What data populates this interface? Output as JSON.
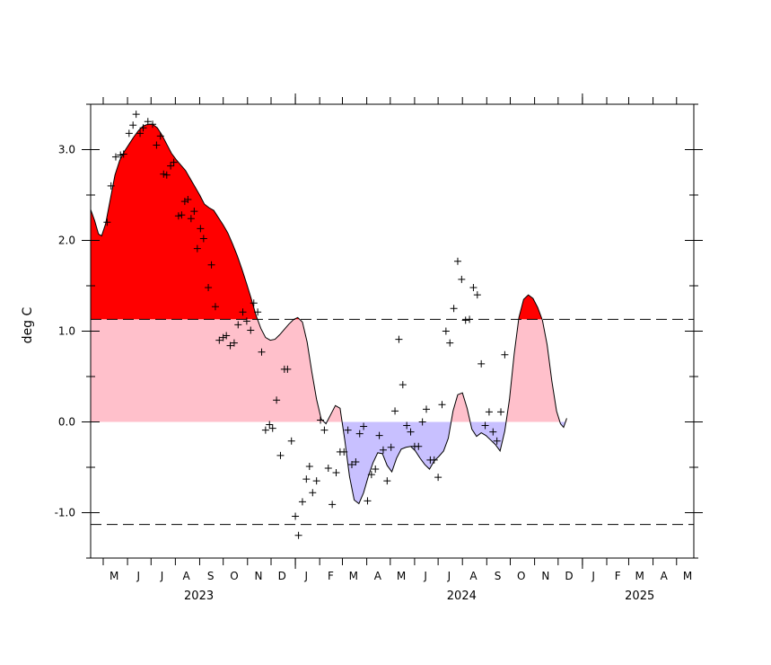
{
  "chart_data": {
    "type": "area",
    "ylabel": "deg C",
    "ylim": [
      -1.5,
      3.5
    ],
    "yticks": [
      {
        "value": -1.0,
        "label": "-1.0"
      },
      {
        "value": 0.0,
        "label": "0.0"
      },
      {
        "value": 1.0,
        "label": "1.0"
      },
      {
        "value": 2.0,
        "label": "2.0"
      },
      {
        "value": 3.0,
        "label": "3.0"
      }
    ],
    "x_start": "2023-04-15",
    "x_end": "2025-05-23",
    "month_ticks": [
      {
        "date": "2023-05-15",
        "label": "M"
      },
      {
        "date": "2023-06-15",
        "label": "J"
      },
      {
        "date": "2023-07-15",
        "label": "J"
      },
      {
        "date": "2023-08-15",
        "label": "A"
      },
      {
        "date": "2023-09-15",
        "label": "S"
      },
      {
        "date": "2023-10-15",
        "label": "O"
      },
      {
        "date": "2023-11-15",
        "label": "N"
      },
      {
        "date": "2023-12-15",
        "label": "D"
      },
      {
        "date": "2024-01-15",
        "label": "J"
      },
      {
        "date": "2024-02-15",
        "label": "F"
      },
      {
        "date": "2024-03-15",
        "label": "M"
      },
      {
        "date": "2024-04-15",
        "label": "A"
      },
      {
        "date": "2024-05-15",
        "label": "M"
      },
      {
        "date": "2024-06-15",
        "label": "J"
      },
      {
        "date": "2024-07-15",
        "label": "J"
      },
      {
        "date": "2024-08-15",
        "label": "A"
      },
      {
        "date": "2024-09-15",
        "label": "S"
      },
      {
        "date": "2024-10-15",
        "label": "O"
      },
      {
        "date": "2024-11-15",
        "label": "N"
      },
      {
        "date": "2024-12-15",
        "label": "D"
      },
      {
        "date": "2025-01-15",
        "label": "J"
      },
      {
        "date": "2025-02-15",
        "label": "F"
      },
      {
        "date": "2025-03-15",
        "label": "M"
      },
      {
        "date": "2025-04-15",
        "label": "A"
      },
      {
        "date": "2025-05-15",
        "label": "M"
      }
    ],
    "year_labels": [
      {
        "date": "2023-08-31",
        "label": "2023"
      },
      {
        "date": "2024-07-31",
        "label": "2024"
      },
      {
        "date": "2025-03-15",
        "label": "2025"
      }
    ],
    "thresholds": [
      1.13,
      -1.13
    ],
    "colors": {
      "strong_warm": "#ff0000",
      "weak_warm": "#ffc0cb",
      "weak_cold": "#c8c0ff",
      "strong_cold": "#6060ff",
      "line": "#000000"
    },
    "series": [
      {
        "style": "filled-line",
        "points": [
          [
            "2023-04-15",
            2.34
          ],
          [
            "2023-04-20",
            2.22
          ],
          [
            "2023-04-25",
            2.07
          ],
          [
            "2023-04-29",
            2.05
          ],
          [
            "2023-05-04",
            2.18
          ],
          [
            "2023-05-10",
            2.45
          ],
          [
            "2023-05-16",
            2.72
          ],
          [
            "2023-05-22",
            2.88
          ],
          [
            "2023-05-28",
            2.98
          ],
          [
            "2023-06-03",
            3.06
          ],
          [
            "2023-06-09",
            3.14
          ],
          [
            "2023-06-15",
            3.21
          ],
          [
            "2023-06-21",
            3.26
          ],
          [
            "2023-06-27",
            3.28
          ],
          [
            "2023-07-03",
            3.28
          ],
          [
            "2023-07-09",
            3.24
          ],
          [
            "2023-07-15",
            3.16
          ],
          [
            "2023-07-21",
            3.06
          ],
          [
            "2023-07-27",
            2.96
          ],
          [
            "2023-08-02",
            2.89
          ],
          [
            "2023-08-08",
            2.83
          ],
          [
            "2023-08-14",
            2.77
          ],
          [
            "2023-08-20",
            2.68
          ],
          [
            "2023-08-26",
            2.59
          ],
          [
            "2023-09-01",
            2.5
          ],
          [
            "2023-09-07",
            2.4
          ],
          [
            "2023-09-13",
            2.36
          ],
          [
            "2023-09-19",
            2.33
          ],
          [
            "2023-09-25",
            2.25
          ],
          [
            "2023-10-01",
            2.17
          ],
          [
            "2023-10-07",
            2.08
          ],
          [
            "2023-10-13",
            1.96
          ],
          [
            "2023-10-19",
            1.83
          ],
          [
            "2023-10-25",
            1.68
          ],
          [
            "2023-10-31",
            1.52
          ],
          [
            "2023-11-06",
            1.35
          ],
          [
            "2023-11-12",
            1.17
          ],
          [
            "2023-11-18",
            1.03
          ],
          [
            "2023-11-24",
            0.93
          ],
          [
            "2023-11-30",
            0.9
          ],
          [
            "2023-12-06",
            0.91
          ],
          [
            "2023-12-12",
            0.96
          ],
          [
            "2023-12-18",
            1.02
          ],
          [
            "2023-12-24",
            1.08
          ],
          [
            "2023-12-30",
            1.13
          ],
          [
            "2024-01-04",
            1.15
          ],
          [
            "2024-01-10",
            1.1
          ],
          [
            "2024-01-16",
            0.88
          ],
          [
            "2024-01-22",
            0.55
          ],
          [
            "2024-01-28",
            0.25
          ],
          [
            "2024-02-03",
            0.03
          ],
          [
            "2024-02-09",
            -0.02
          ],
          [
            "2024-02-15",
            0.08
          ],
          [
            "2024-02-21",
            0.18
          ],
          [
            "2024-02-27",
            0.15
          ],
          [
            "2024-03-04",
            -0.2
          ],
          [
            "2024-03-10",
            -0.6
          ],
          [
            "2024-03-16",
            -0.86
          ],
          [
            "2024-03-22",
            -0.9
          ],
          [
            "2024-03-28",
            -0.78
          ],
          [
            "2024-04-03",
            -0.6
          ],
          [
            "2024-04-09",
            -0.45
          ],
          [
            "2024-04-15",
            -0.34
          ],
          [
            "2024-04-21",
            -0.35
          ],
          [
            "2024-04-27",
            -0.48
          ],
          [
            "2024-05-03",
            -0.55
          ],
          [
            "2024-05-09",
            -0.4
          ],
          [
            "2024-05-15",
            -0.3
          ],
          [
            "2024-05-21",
            -0.28
          ],
          [
            "2024-05-27",
            -0.27
          ],
          [
            "2024-06-02",
            -0.32
          ],
          [
            "2024-06-08",
            -0.4
          ],
          [
            "2024-06-14",
            -0.47
          ],
          [
            "2024-06-20",
            -0.52
          ],
          [
            "2024-06-26",
            -0.43
          ],
          [
            "2024-07-02",
            -0.38
          ],
          [
            "2024-07-08",
            -0.32
          ],
          [
            "2024-07-14",
            -0.18
          ],
          [
            "2024-07-20",
            0.12
          ],
          [
            "2024-07-26",
            0.3
          ],
          [
            "2024-08-01",
            0.32
          ],
          [
            "2024-08-07",
            0.15
          ],
          [
            "2024-08-13",
            -0.08
          ],
          [
            "2024-08-19",
            -0.16
          ],
          [
            "2024-08-25",
            -0.12
          ],
          [
            "2024-08-31",
            -0.15
          ],
          [
            "2024-09-06",
            -0.2
          ],
          [
            "2024-09-12",
            -0.25
          ],
          [
            "2024-09-18",
            -0.32
          ],
          [
            "2024-09-24",
            -0.1
          ],
          [
            "2024-09-30",
            0.25
          ],
          [
            "2024-10-06",
            0.75
          ],
          [
            "2024-10-12",
            1.15
          ],
          [
            "2024-10-18",
            1.35
          ],
          [
            "2024-10-24",
            1.4
          ],
          [
            "2024-10-30",
            1.36
          ],
          [
            "2024-11-05",
            1.26
          ],
          [
            "2024-11-11",
            1.12
          ],
          [
            "2024-11-17",
            0.85
          ],
          [
            "2024-11-23",
            0.45
          ],
          [
            "2024-11-29",
            0.12
          ],
          [
            "2024-12-04",
            -0.02
          ],
          [
            "2024-12-08",
            -0.06
          ],
          [
            "2024-12-12",
            0.04
          ]
        ]
      },
      {
        "style": "markers",
        "points": [
          [
            "2023-05-06",
            2.2
          ],
          [
            "2023-05-11",
            2.6
          ],
          [
            "2023-05-17",
            2.92
          ],
          [
            "2023-05-23",
            2.94
          ],
          [
            "2023-05-27",
            2.95
          ],
          [
            "2023-06-03",
            3.18
          ],
          [
            "2023-06-08",
            3.27
          ],
          [
            "2023-06-12",
            3.39
          ],
          [
            "2023-06-17",
            3.18
          ],
          [
            "2023-06-21",
            3.24
          ],
          [
            "2023-06-27",
            3.31
          ],
          [
            "2023-07-03",
            3.28
          ],
          [
            "2023-07-08",
            3.05
          ],
          [
            "2023-07-13",
            3.15
          ],
          [
            "2023-07-17",
            2.73
          ],
          [
            "2023-07-21",
            2.72
          ],
          [
            "2023-07-26",
            2.82
          ],
          [
            "2023-07-30",
            2.86
          ],
          [
            "2023-08-05",
            2.27
          ],
          [
            "2023-08-09",
            2.28
          ],
          [
            "2023-08-13",
            2.43
          ],
          [
            "2023-08-17",
            2.45
          ],
          [
            "2023-08-21",
            2.24
          ],
          [
            "2023-08-25",
            2.32
          ],
          [
            "2023-08-29",
            1.91
          ],
          [
            "2023-09-02",
            2.13
          ],
          [
            "2023-09-06",
            2.02
          ],
          [
            "2023-09-12",
            1.48
          ],
          [
            "2023-09-16",
            1.73
          ],
          [
            "2023-09-21",
            1.27
          ],
          [
            "2023-09-26",
            0.9
          ],
          [
            "2023-10-01",
            0.93
          ],
          [
            "2023-10-05",
            0.95
          ],
          [
            "2023-10-10",
            0.84
          ],
          [
            "2023-10-15",
            0.87
          ],
          [
            "2023-10-20",
            1.07
          ],
          [
            "2023-10-26",
            1.21
          ],
          [
            "2023-10-31",
            1.11
          ],
          [
            "2023-11-05",
            1.01
          ],
          [
            "2023-11-09",
            1.31
          ],
          [
            "2023-11-14",
            1.21
          ],
          [
            "2023-11-19",
            0.77
          ],
          [
            "2023-11-24",
            -0.09
          ],
          [
            "2023-11-29",
            -0.03
          ],
          [
            "2023-12-03",
            -0.07
          ],
          [
            "2023-12-08",
            0.24
          ],
          [
            "2023-12-13",
            -0.37
          ],
          [
            "2023-12-18",
            0.58
          ],
          [
            "2023-12-22",
            0.58
          ],
          [
            "2023-12-27",
            -0.21
          ],
          [
            "2024-01-01",
            -1.04
          ],
          [
            "2024-01-05",
            -1.25
          ],
          [
            "2024-01-10",
            -0.88
          ],
          [
            "2024-01-15",
            -0.63
          ],
          [
            "2024-01-19",
            -0.49
          ],
          [
            "2024-01-23",
            -0.78
          ],
          [
            "2024-01-28",
            -0.65
          ],
          [
            "2024-02-02",
            0.02
          ],
          [
            "2024-02-07",
            -0.09
          ],
          [
            "2024-02-12",
            -0.51
          ],
          [
            "2024-02-17",
            -0.91
          ],
          [
            "2024-02-22",
            -0.56
          ],
          [
            "2024-02-27",
            -0.33
          ],
          [
            "2024-03-03",
            -0.33
          ],
          [
            "2024-03-08",
            -0.09
          ],
          [
            "2024-03-13",
            -0.47
          ],
          [
            "2024-03-18",
            -0.44
          ],
          [
            "2024-03-23",
            -0.13
          ],
          [
            "2024-03-28",
            -0.05
          ],
          [
            "2024-04-02",
            -0.87
          ],
          [
            "2024-04-07",
            -0.58
          ],
          [
            "2024-04-12",
            -0.52
          ],
          [
            "2024-04-17",
            -0.15
          ],
          [
            "2024-04-22",
            -0.31
          ],
          [
            "2024-04-27",
            -0.65
          ],
          [
            "2024-05-02",
            -0.28
          ],
          [
            "2024-05-07",
            0.12
          ],
          [
            "2024-05-12",
            0.91
          ],
          [
            "2024-05-17",
            0.41
          ],
          [
            "2024-05-22",
            -0.04
          ],
          [
            "2024-05-27",
            -0.11
          ],
          [
            "2024-06-01",
            -0.27
          ],
          [
            "2024-06-06",
            -0.27
          ],
          [
            "2024-06-11",
            0.0
          ],
          [
            "2024-06-16",
            0.14
          ],
          [
            "2024-06-21",
            -0.42
          ],
          [
            "2024-06-26",
            -0.42
          ],
          [
            "2024-07-01",
            -0.61
          ],
          [
            "2024-07-06",
            0.19
          ],
          [
            "2024-07-11",
            1.0
          ],
          [
            "2024-07-16",
            0.87
          ],
          [
            "2024-07-21",
            1.25
          ],
          [
            "2024-07-26",
            1.77
          ],
          [
            "2024-07-31",
            1.57
          ],
          [
            "2024-08-05",
            1.12
          ],
          [
            "2024-08-10",
            1.13
          ],
          [
            "2024-08-15",
            1.48
          ],
          [
            "2024-08-20",
            1.4
          ],
          [
            "2024-08-25",
            0.64
          ],
          [
            "2024-08-30",
            -0.04
          ],
          [
            "2024-09-04",
            0.11
          ],
          [
            "2024-09-09",
            -0.11
          ],
          [
            "2024-09-14",
            -0.21
          ],
          [
            "2024-09-19",
            0.11
          ],
          [
            "2024-09-24",
            0.74
          ]
        ]
      }
    ]
  }
}
